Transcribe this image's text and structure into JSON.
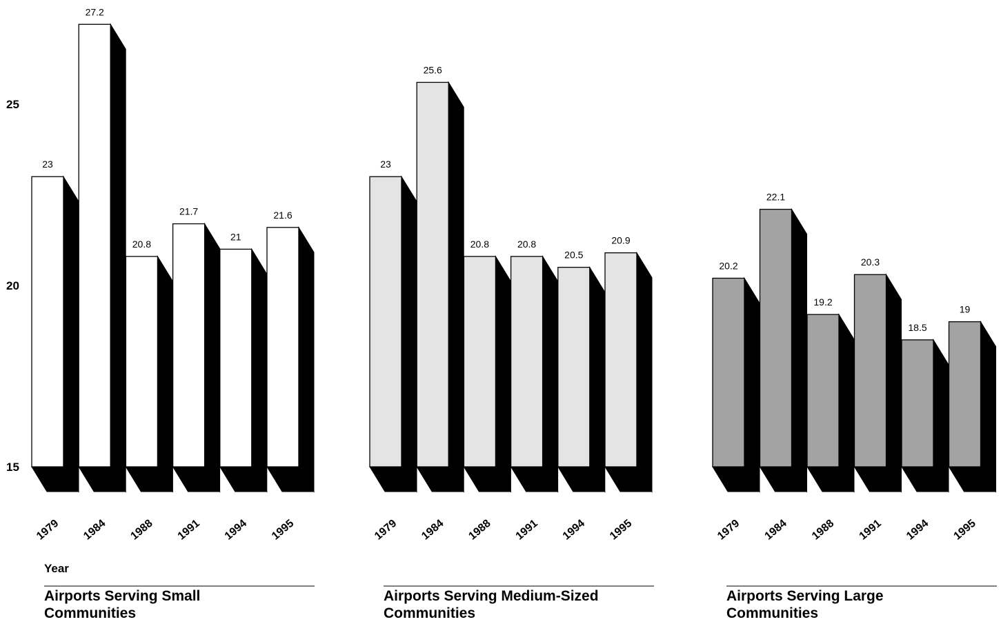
{
  "chart_data": {
    "type": "bar",
    "ylim": [
      15,
      27.2
    ],
    "yticks": [
      15,
      20,
      25
    ],
    "xlabel": "Year",
    "grid": false,
    "panels": [
      {
        "title_lines": [
          "Airports Serving Small",
          "Communities"
        ],
        "fill": "#ffffff",
        "categories": [
          "1979",
          "1984",
          "1988",
          "1991",
          "1994",
          "1995"
        ],
        "values": [
          23,
          27.2,
          20.8,
          21.7,
          21,
          21.6
        ],
        "value_labels": [
          "23",
          "27.2",
          "20.8",
          "21.7",
          "21",
          "21.6"
        ]
      },
      {
        "title_lines": [
          "Airports Serving Medium-Sized",
          "Communities"
        ],
        "fill": "#e4e4e4",
        "categories": [
          "1979",
          "1984",
          "1988",
          "1991",
          "1994",
          "1995"
        ],
        "values": [
          23,
          25.6,
          20.8,
          20.8,
          20.5,
          20.9
        ],
        "value_labels": [
          "23",
          "25.6",
          "20.8",
          "20.8",
          "20.5",
          "20.9"
        ]
      },
      {
        "title_lines": [
          "Airports Serving Large",
          "Communities"
        ],
        "fill": "#a3a3a3",
        "categories": [
          "1979",
          "1984",
          "1988",
          "1991",
          "1994",
          "1995"
        ],
        "values": [
          20.2,
          22.1,
          19.2,
          20.3,
          18.5,
          19
        ],
        "value_labels": [
          "20.2",
          "22.1",
          "19.2",
          "20.3",
          "18.5",
          "19"
        ]
      }
    ]
  }
}
